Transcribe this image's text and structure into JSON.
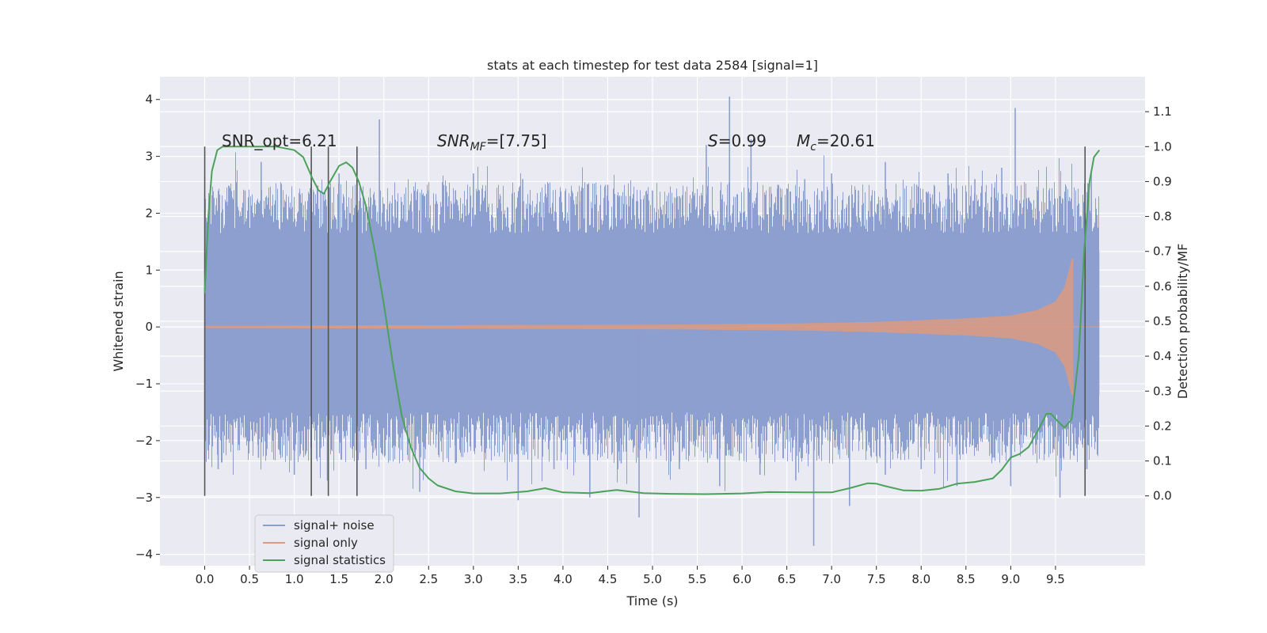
{
  "chart_data": {
    "type": "line",
    "title": "stats at each timestep for test data 2584 [signal=1]",
    "xlabel": "Time (s)",
    "ylabel": "Whitened strain",
    "y2label": "Detection probability/MF",
    "xlim": [
      -0.5,
      10.5
    ],
    "ylim": [
      -4.2,
      4.4
    ],
    "y2lim": [
      -0.2,
      1.2
    ],
    "xticks": [
      0.0,
      0.5,
      1.0,
      1.5,
      2.0,
      2.5,
      3.0,
      3.5,
      4.0,
      4.5,
      5.0,
      5.5,
      6.0,
      6.5,
      7.0,
      7.5,
      8.0,
      8.5,
      9.0,
      9.5
    ],
    "yticks": [
      -4,
      -3,
      -2,
      -1,
      0,
      1,
      2,
      3,
      4
    ],
    "y2ticks": [
      0.0,
      0.1,
      0.2,
      0.3,
      0.4,
      0.5,
      0.6,
      0.7,
      0.8,
      0.9,
      1.0,
      1.1
    ],
    "grid": true,
    "legend_position": "lower-left",
    "annotations": {
      "snr_opt": "SNR_opt=6.21",
      "snr_mf_label": "SNR",
      "snr_mf_sub": "MF",
      "snr_mf_value": "=[7.75]",
      "s_label": "S",
      "s_value": "=0.99",
      "mc_label": "M",
      "mc_sub": "c",
      "mc_value": "=20.61"
    },
    "vertical_lines_x": [
      0.0,
      1.19,
      1.38,
      1.7,
      9.83
    ],
    "vertical_lines_y2_range": [
      0.0,
      1.0
    ],
    "series": [
      {
        "name": "signal+ noise",
        "color": "#8c9fcf",
        "noise_band": [
          -1.2,
          1.35
        ],
        "peaks": [
          {
            "x": 0.25,
            "v": 2.2
          },
          {
            "x": 0.45,
            "v": 2.4
          },
          {
            "x": 0.63,
            "v": 2.9
          },
          {
            "x": 0.9,
            "v": 2.2
          },
          {
            "x": 1.2,
            "v": 2.0
          },
          {
            "x": 1.5,
            "v": 2.7
          },
          {
            "x": 1.95,
            "v": 3.65
          },
          {
            "x": 2.2,
            "v": 2.2
          },
          {
            "x": 2.5,
            "v": 2.4
          },
          {
            "x": 2.8,
            "v": 2.4
          },
          {
            "x": 3.0,
            "v": 2.7
          },
          {
            "x": 3.3,
            "v": 2.3
          },
          {
            "x": 3.55,
            "v": 2.6
          },
          {
            "x": 3.8,
            "v": 2.3
          },
          {
            "x": 4.2,
            "v": 2.2
          },
          {
            "x": 4.5,
            "v": 2.5
          },
          {
            "x": 4.75,
            "v": 2.3
          },
          {
            "x": 5.0,
            "v": 2.4
          },
          {
            "x": 5.3,
            "v": 2.3
          },
          {
            "x": 5.6,
            "v": 3.2
          },
          {
            "x": 5.86,
            "v": 4.05
          },
          {
            "x": 6.1,
            "v": 3.3
          },
          {
            "x": 6.4,
            "v": 2.5
          },
          {
            "x": 6.7,
            "v": 2.6
          },
          {
            "x": 7.0,
            "v": 2.7
          },
          {
            "x": 7.3,
            "v": 2.4
          },
          {
            "x": 7.6,
            "v": 2.9
          },
          {
            "x": 7.95,
            "v": 2.5
          },
          {
            "x": 8.3,
            "v": 2.7
          },
          {
            "x": 8.6,
            "v": 2.6
          },
          {
            "x": 8.9,
            "v": 2.8
          },
          {
            "x": 9.05,
            "v": 3.85
          },
          {
            "x": 9.3,
            "v": 2.4
          },
          {
            "x": 9.55,
            "v": 2.3
          },
          {
            "x": 9.9,
            "v": 2.7
          }
        ],
        "troughs": [
          {
            "x": 0.15,
            "v": -2.5
          },
          {
            "x": 0.6,
            "v": -2.3
          },
          {
            "x": 1.0,
            "v": -2.6
          },
          {
            "x": 1.37,
            "v": -2.7
          },
          {
            "x": 1.8,
            "v": -2.5
          },
          {
            "x": 2.4,
            "v": -2.9
          },
          {
            "x": 2.8,
            "v": -2.4
          },
          {
            "x": 3.5,
            "v": -3.05
          },
          {
            "x": 3.9,
            "v": -2.5
          },
          {
            "x": 4.3,
            "v": -3.0
          },
          {
            "x": 4.65,
            "v": -2.4
          },
          {
            "x": 4.85,
            "v": -3.35
          },
          {
            "x": 5.3,
            "v": -2.5
          },
          {
            "x": 5.75,
            "v": -2.8
          },
          {
            "x": 6.2,
            "v": -2.6
          },
          {
            "x": 6.6,
            "v": -2.7
          },
          {
            "x": 6.8,
            "v": -3.85
          },
          {
            "x": 7.2,
            "v": -3.15
          },
          {
            "x": 7.6,
            "v": -2.6
          },
          {
            "x": 8.0,
            "v": -2.5
          },
          {
            "x": 8.4,
            "v": -2.8
          },
          {
            "x": 8.8,
            "v": -2.3
          },
          {
            "x": 9.0,
            "v": -2.8
          },
          {
            "x": 9.55,
            "v": -3.0
          },
          {
            "x": 9.85,
            "v": -2.5
          }
        ]
      },
      {
        "name": "signal only",
        "color": "#dd9a80",
        "envelope_x": [
          0.0,
          5.0,
          6.5,
          7.5,
          8.5,
          9.0,
          9.3,
          9.5,
          9.6,
          9.65,
          9.68,
          9.7
        ],
        "envelope_amp": [
          0.02,
          0.04,
          0.06,
          0.09,
          0.15,
          0.2,
          0.3,
          0.45,
          0.7,
          1.0,
          1.2,
          1.2
        ]
      },
      {
        "name": "signal statistics",
        "color": "#4ba25a",
        "axis": "right",
        "x": [
          0.0,
          0.04,
          0.08,
          0.14,
          0.2,
          0.3,
          0.5,
          0.8,
          1.0,
          1.1,
          1.2,
          1.27,
          1.33,
          1.4,
          1.5,
          1.58,
          1.65,
          1.72,
          1.8,
          1.9,
          2.0,
          2.1,
          2.2,
          2.3,
          2.4,
          2.5,
          2.6,
          2.8,
          3.0,
          3.3,
          3.6,
          3.8,
          4.0,
          4.3,
          4.6,
          4.9,
          5.2,
          5.6,
          6.0,
          6.3,
          6.7,
          7.0,
          7.2,
          7.4,
          7.5,
          7.6,
          7.8,
          8.0,
          8.2,
          8.4,
          8.6,
          8.8,
          8.9,
          9.0,
          9.1,
          9.2,
          9.3,
          9.4,
          9.45,
          9.52,
          9.6,
          9.68,
          9.76,
          9.82,
          9.88,
          9.93,
          9.99
        ],
        "y": [
          0.58,
          0.8,
          0.93,
          0.99,
          1.0,
          1.0,
          1.0,
          1.0,
          0.99,
          0.97,
          0.91,
          0.875,
          0.865,
          0.9,
          0.945,
          0.955,
          0.94,
          0.9,
          0.83,
          0.7,
          0.55,
          0.38,
          0.23,
          0.14,
          0.08,
          0.05,
          0.03,
          0.013,
          0.007,
          0.007,
          0.013,
          0.022,
          0.01,
          0.008,
          0.017,
          0.008,
          0.006,
          0.005,
          0.007,
          0.011,
          0.01,
          0.01,
          0.022,
          0.036,
          0.035,
          0.028,
          0.016,
          0.015,
          0.02,
          0.035,
          0.04,
          0.05,
          0.075,
          0.11,
          0.12,
          0.14,
          0.185,
          0.235,
          0.235,
          0.215,
          0.195,
          0.22,
          0.4,
          0.7,
          0.9,
          0.97,
          0.99
        ]
      }
    ]
  }
}
